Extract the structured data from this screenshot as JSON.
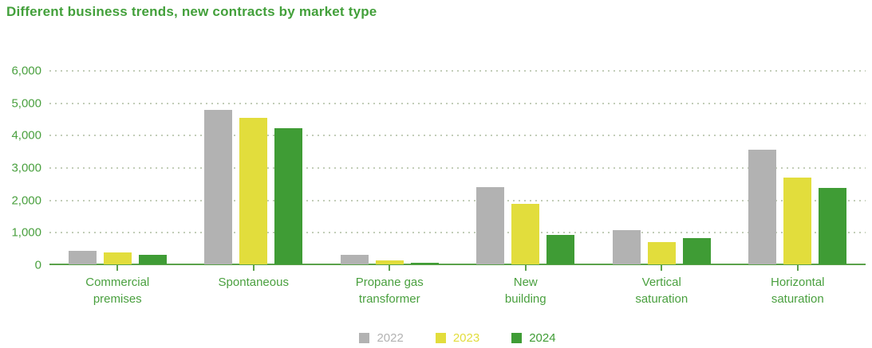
{
  "title": "Different business trends, new contracts by market type",
  "colors": {
    "title_green": "#43a03b",
    "text_green": "#4aa03f",
    "axis_green": "#5ba24b",
    "grid_dot": "#c2cdb8",
    "bar_gray": "#b2b2b2",
    "bar_yellow": "#e2dd3c",
    "bar_green": "#3f9c35"
  },
  "chart_data": {
    "type": "bar",
    "title": "Different business trends, new contracts by market type",
    "categories": [
      "Commercial premises",
      "Spontaneous",
      "Propane gas transformer",
      "New building",
      "Vertical saturation",
      "Horizontal saturation"
    ],
    "category_label_lines": [
      [
        "Commercial",
        "premises"
      ],
      [
        "Spontaneous"
      ],
      [
        "Propane gas",
        "transformer"
      ],
      [
        "New",
        "building"
      ],
      [
        "Vertical",
        "saturation"
      ],
      [
        "Horizontal",
        "saturation"
      ]
    ],
    "series": [
      {
        "name": "2022",
        "color": "#b2b2b2",
        "values": [
          430,
          4770,
          290,
          2390,
          1050,
          3550
        ]
      },
      {
        "name": "2023",
        "color": "#e2dd3c",
        "values": [
          370,
          4520,
          120,
          1860,
          690,
          2680
        ]
      },
      {
        "name": "2024",
        "color": "#3f9c35",
        "values": [
          300,
          4200,
          60,
          900,
          810,
          2360
        ]
      }
    ],
    "xlabel": "",
    "ylabel": "",
    "ylim": [
      0,
      6000
    ],
    "ytick_interval": 1000,
    "ytick_labels": [
      "6,000",
      "5,000",
      "4,000",
      "3,000",
      "2,000",
      "1,000",
      "0"
    ],
    "grid": "dotted horizontal gridlines",
    "legend_position": "bottom center"
  },
  "legend": {
    "items": [
      {
        "label": "2022",
        "color": "#b2b2b2"
      },
      {
        "label": "2023",
        "color": "#e2dd3c"
      },
      {
        "label": "2024",
        "color": "#3f9c35"
      }
    ]
  }
}
